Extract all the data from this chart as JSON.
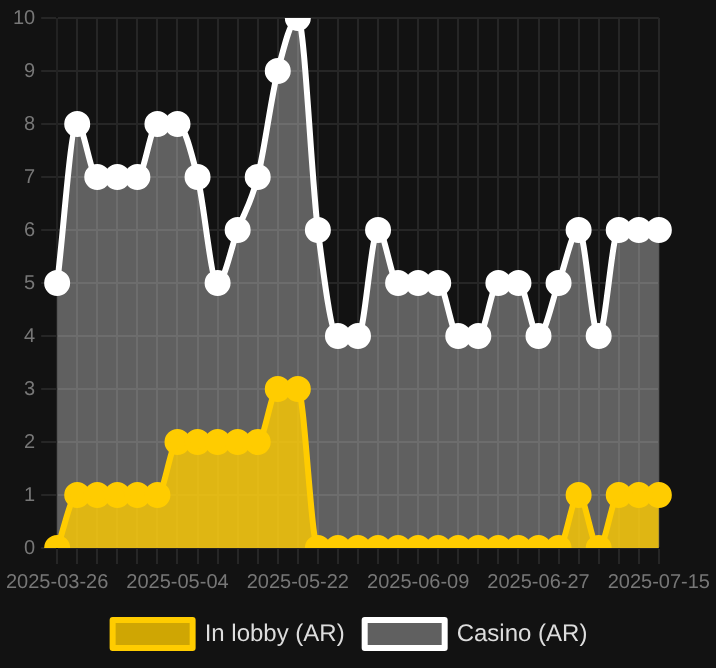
{
  "chart_data": {
    "type": "area",
    "categories": [
      "2025-03-26",
      null,
      null,
      null,
      null,
      null,
      "2025-05-04",
      null,
      null,
      null,
      null,
      null,
      "2025-05-22",
      null,
      null,
      null,
      null,
      null,
      "2025-06-09",
      null,
      null,
      null,
      null,
      null,
      "2025-06-27",
      null,
      null,
      null,
      null,
      null,
      "2025-07-15"
    ],
    "series": [
      {
        "name": "In lobby (AR)",
        "color": "#ffcc00",
        "values": [
          0,
          1,
          1,
          1,
          1,
          1,
          2,
          2,
          2,
          2,
          2,
          3,
          3,
          0,
          0,
          0,
          0,
          0,
          0,
          0,
          0,
          0,
          0,
          0,
          0,
          0,
          1,
          0,
          1,
          1,
          1
        ]
      },
      {
        "name": "Casino (AR)",
        "color": "#ffffff",
        "values": [
          5,
          8,
          7,
          7,
          7,
          8,
          8,
          7,
          5,
          6,
          7,
          9,
          10,
          6,
          4,
          4,
          6,
          5,
          5,
          5,
          4,
          4,
          5,
          5,
          4,
          5,
          6,
          4,
          6,
          6,
          6
        ]
      }
    ],
    "ylim": [
      0,
      10
    ],
    "yticks": [
      0,
      1,
      2,
      3,
      4,
      5,
      6,
      7,
      8,
      9,
      10
    ],
    "grid": true,
    "legend": "bottom",
    "marker": "circle"
  }
}
